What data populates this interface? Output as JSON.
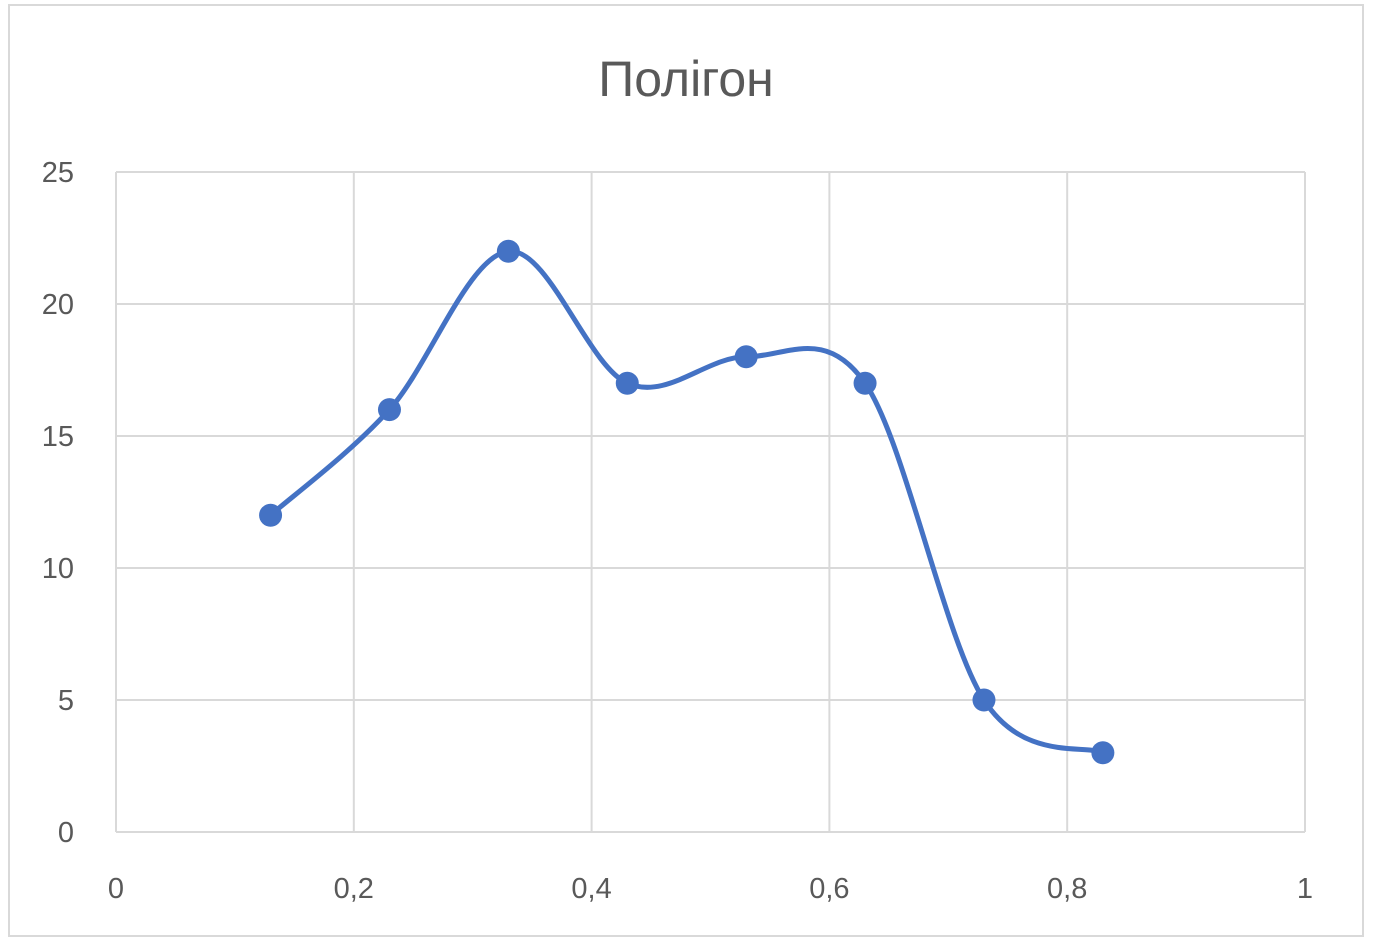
{
  "chart_data": {
    "type": "scatter",
    "title": "Полігон",
    "xlabel": "",
    "ylabel": "",
    "xlim": [
      0,
      1
    ],
    "ylim": [
      0,
      25
    ],
    "x_ticks": [
      0,
      0.2,
      0.4,
      0.6,
      0.8,
      1
    ],
    "x_tick_labels": [
      "0",
      "0,2",
      "0,4",
      "0,6",
      "0,8",
      "1"
    ],
    "y_ticks": [
      0,
      5,
      10,
      15,
      20,
      25
    ],
    "y_tick_labels": [
      "0",
      "5",
      "10",
      "15",
      "20",
      "25"
    ],
    "grid": true,
    "line_style": "smoothed line with markers",
    "color": "#4472c4",
    "series": [
      {
        "x": [
          0.13,
          0.23,
          0.33,
          0.43,
          0.53,
          0.63,
          0.73,
          0.83
        ],
        "y": [
          12,
          16,
          22,
          17,
          18,
          17,
          5,
          3
        ]
      }
    ]
  }
}
